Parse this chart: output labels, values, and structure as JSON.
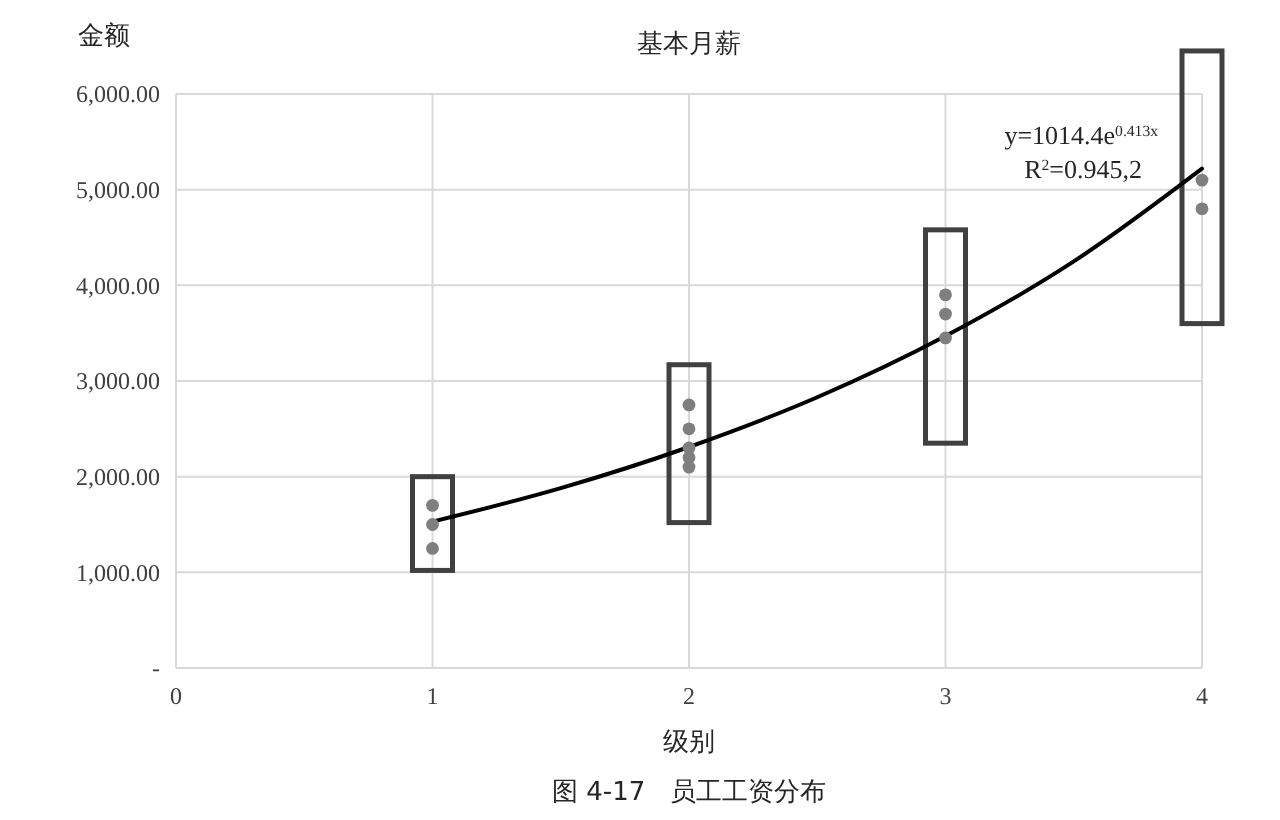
{
  "chart_data": {
    "type": "scatter",
    "title": "基本月薪",
    "xlabel": "级别",
    "ylabel": "金额",
    "xlim": [
      0,
      4
    ],
    "xticks": [
      0,
      1,
      2,
      3,
      4
    ],
    "ylim": [
      0,
      6000
    ],
    "yticks": [
      {
        "value": 0,
        "label": "-"
      },
      {
        "value": 1000,
        "label": "1,000.00"
      },
      {
        "value": 2000,
        "label": "2,000.00"
      },
      {
        "value": 3000,
        "label": "3,000.00"
      },
      {
        "value": 4000,
        "label": "4,000.00"
      },
      {
        "value": 5000,
        "label": "5,000.00"
      },
      {
        "value": 6000,
        "label": "6,000.00"
      }
    ],
    "grid": true,
    "marker": "circle",
    "series": [
      {
        "color": "#7f7f7f",
        "x": [
          1,
          1,
          1,
          2,
          2,
          2,
          2,
          2,
          3,
          3,
          3,
          4,
          4
        ],
        "values": [
          1700,
          1500,
          1250,
          2750,
          2500,
          2300,
          2200,
          2100,
          3900,
          3700,
          3450,
          5100,
          4800
        ]
      },
      {
        "type": "line",
        "color": "#000000",
        "marker": "none",
        "x": [
          1,
          1.5,
          2,
          2.5,
          3,
          3.5,
          4
        ],
        "values": [
          1530,
          1880,
          2310,
          2830,
          3470,
          4250,
          5220
        ]
      }
    ],
    "annotations": [
      "y=1014.4e$^{0.413x}$",
      "R$^{2}$=0.945,2",
      "图 4-17   员工工资分布"
    ]
  }
}
